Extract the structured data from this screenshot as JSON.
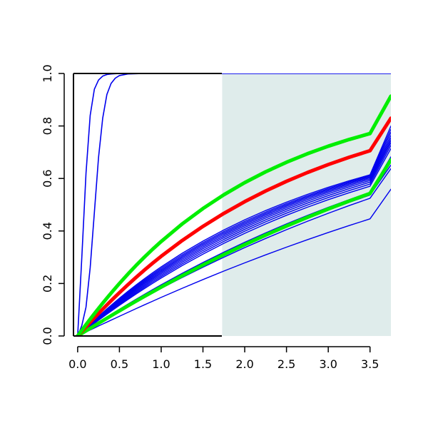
{
  "chart_data": {
    "type": "line",
    "title": "",
    "xlabel": "",
    "ylabel": "",
    "xlim": [
      -0.05,
      3.75
    ],
    "ylim": [
      0.0,
      1.0
    ],
    "x_ticks": [
      "0.0",
      "0.5",
      "1.0",
      "1.5",
      "2.0",
      "2.5",
      "3.0",
      "3.5"
    ],
    "y_ticks": [
      "0.0",
      "0.2",
      "0.4",
      "0.6",
      "0.8",
      "1.0"
    ],
    "grid": false,
    "legend": "none",
    "shaded_region": {
      "x_start": 1.73,
      "x_end": 3.75,
      "color": "#dfeceb"
    },
    "colors": {
      "blue": "#0000ee",
      "red": "#ff0000",
      "green": "#00ee00",
      "axis": "#000000"
    },
    "x": [
      0.0,
      0.05,
      0.1,
      0.15,
      0.2,
      0.25,
      0.3,
      0.35,
      0.4,
      0.45,
      0.5,
      0.6,
      0.7,
      0.8,
      0.9,
      1.0,
      1.25,
      1.5,
      1.75,
      2.0,
      2.25,
      2.5,
      2.75,
      3.0,
      3.25,
      3.5,
      3.75
    ],
    "series": [
      {
        "color": "blue",
        "width": 1.6,
        "y": [
          0.0,
          0.3,
          0.62,
          0.84,
          0.94,
          0.975,
          0.99,
          0.996,
          0.998,
          0.999,
          1.0,
          1.0,
          1.0,
          1.0,
          1.0,
          1.0,
          1.0,
          1.0,
          1.0,
          1.0,
          1.0,
          1.0,
          1.0,
          1.0,
          1.0,
          1.0,
          1.0
        ]
      },
      {
        "color": "blue",
        "width": 1.6,
        "y": [
          0.0,
          0.04,
          0.11,
          0.26,
          0.47,
          0.68,
          0.83,
          0.92,
          0.962,
          0.982,
          0.992,
          0.998,
          0.999,
          1.0,
          1.0,
          1.0,
          1.0,
          1.0,
          1.0,
          1.0,
          1.0,
          1.0,
          1.0,
          1.0,
          1.0,
          1.0,
          1.0
        ]
      },
      {
        "color": "blue",
        "width": 1.4,
        "y": [
          0.0,
          0.0076,
          0.0152,
          0.0228,
          0.0303,
          0.0379,
          0.0454,
          0.0528,
          0.0603,
          0.0677,
          0.0751,
          0.0898,
          0.1043,
          0.1187,
          0.1329,
          0.147,
          0.1815,
          0.2149,
          0.2473,
          0.2786,
          0.3089,
          0.3383,
          0.3667,
          0.3941,
          0.4206,
          0.4462,
          0.5591
        ]
      },
      {
        "color": "blue",
        "width": 1.4,
        "y": [
          0.0,
          0.0096,
          0.0192,
          0.0287,
          0.0381,
          0.0475,
          0.0569,
          0.0662,
          0.0754,
          0.0846,
          0.0937,
          0.1118,
          0.1296,
          0.1471,
          0.1643,
          0.1813,
          0.2225,
          0.262,
          0.3,
          0.3365,
          0.3714,
          0.4048,
          0.4368,
          0.4674,
          0.4967,
          0.5247,
          0.6374
        ]
      },
      {
        "color": "blue",
        "width": 1.4,
        "y": [
          0.0,
          0.0101,
          0.0201,
          0.0301,
          0.0399,
          0.0497,
          0.0595,
          0.0691,
          0.0787,
          0.0883,
          0.0977,
          0.1164,
          0.1348,
          0.1529,
          0.1707,
          0.1882,
          0.2306,
          0.2711,
          0.3099,
          0.3471,
          0.3826,
          0.4164,
          0.4487,
          0.4795,
          0.5089,
          0.5369,
          0.6508
        ]
      },
      {
        "color": "blue",
        "width": 1.4,
        "y": [
          0.0,
          0.0105,
          0.021,
          0.0313,
          0.0416,
          0.0518,
          0.0619,
          0.0719,
          0.0819,
          0.0917,
          0.1015,
          0.1209,
          0.1399,
          0.1586,
          0.1769,
          0.1949,
          0.2385,
          0.2799,
          0.3193,
          0.3569,
          0.3927,
          0.4268,
          0.4592,
          0.49,
          0.5193,
          0.5472,
          0.6824
        ]
      },
      {
        "color": "blue",
        "width": 1.4,
        "y": [
          0.0,
          0.0122,
          0.0243,
          0.0363,
          0.0481,
          0.0599,
          0.0715,
          0.0829,
          0.0943,
          0.1055,
          0.1166,
          0.1385,
          0.1599,
          0.1807,
          0.201,
          0.2207,
          0.2679,
          0.3119,
          0.3529,
          0.3911,
          0.4266,
          0.4597,
          0.4905,
          0.5191,
          0.5457,
          0.5704,
          0.7138
        ]
      },
      {
        "color": "blue",
        "width": 1.4,
        "y": [
          0.0,
          0.0126,
          0.0251,
          0.0375,
          0.0497,
          0.0618,
          0.0737,
          0.0855,
          0.0972,
          0.1087,
          0.1201,
          0.1426,
          0.1644,
          0.1857,
          0.2064,
          0.2265,
          0.2745,
          0.3191,
          0.3605,
          0.399,
          0.4347,
          0.4679,
          0.4987,
          0.5273,
          0.5539,
          0.5786,
          0.7257
        ]
      },
      {
        "color": "blue",
        "width": 1.4,
        "y": [
          0.0,
          0.013,
          0.0259,
          0.0387,
          0.0513,
          0.0637,
          0.076,
          0.0882,
          0.1001,
          0.1119,
          0.1236,
          0.1466,
          0.1689,
          0.1906,
          0.2117,
          0.2321,
          0.2808,
          0.3259,
          0.3677,
          0.4064,
          0.4423,
          0.4755,
          0.5063,
          0.5349,
          0.5614,
          0.586,
          0.7357
        ]
      },
      {
        "color": "blue",
        "width": 1.4,
        "y": [
          0.0,
          0.0134,
          0.0267,
          0.0398,
          0.0528,
          0.0656,
          0.0782,
          0.0907,
          0.103,
          0.1151,
          0.1271,
          0.1506,
          0.1734,
          0.1955,
          0.2169,
          0.2376,
          0.2869,
          0.3325,
          0.3745,
          0.4134,
          0.4493,
          0.4825,
          0.5133,
          0.5418,
          0.5681,
          0.5925,
          0.7447
        ]
      },
      {
        "color": "blue",
        "width": 1.4,
        "y": [
          0.0,
          0.0138,
          0.0275,
          0.041,
          0.0543,
          0.0675,
          0.0805,
          0.0933,
          0.1059,
          0.1183,
          0.1306,
          0.1545,
          0.1777,
          0.2001,
          0.2218,
          0.2428,
          0.2926,
          0.3385,
          0.3808,
          0.4197,
          0.4556,
          0.4888,
          0.5194,
          0.5478,
          0.5739,
          0.5981,
          0.7537
        ]
      },
      {
        "color": "blue",
        "width": 1.4,
        "y": [
          0.0,
          0.0142,
          0.0283,
          0.0421,
          0.0558,
          0.0693,
          0.0826,
          0.0957,
          0.1086,
          0.1213,
          0.1338,
          0.1582,
          0.1818,
          0.2046,
          0.2266,
          0.2479,
          0.2982,
          0.3443,
          0.3867,
          0.4256,
          0.4614,
          0.4944,
          0.5248,
          0.5529,
          0.5789,
          0.6028,
          0.7637
        ]
      },
      {
        "color": "blue",
        "width": 1.4,
        "y": [
          0.0,
          0.0146,
          0.029,
          0.0432,
          0.0572,
          0.071,
          0.0846,
          0.098,
          0.1112,
          0.1242,
          0.137,
          0.1619,
          0.1859,
          0.2091,
          0.2314,
          0.2529,
          0.3036,
          0.3499,
          0.3923,
          0.4311,
          0.4667,
          0.4995,
          0.5297,
          0.5575,
          0.5832,
          0.6068,
          0.7756
        ]
      },
      {
        "color": "blue",
        "width": 1.4,
        "y": [
          0.0,
          0.015,
          0.0298,
          0.0444,
          0.0587,
          0.0729,
          0.0868,
          0.1005,
          0.114,
          0.1273,
          0.1403,
          0.1657,
          0.1901,
          0.2136,
          0.2362,
          0.2579,
          0.3089,
          0.3554,
          0.3978,
          0.4365,
          0.4719,
          0.5044,
          0.5343,
          0.5618,
          0.5871,
          0.6104,
          0.7871
        ]
      },
      {
        "color": "blue",
        "width": 1.4,
        "y": [
          0.0,
          0.0154,
          0.0306,
          0.0456,
          0.0603,
          0.0748,
          0.0891,
          0.1031,
          0.1169,
          0.1305,
          0.1438,
          0.1696,
          0.1945,
          0.2184,
          0.2413,
          0.2633,
          0.3148,
          0.3615,
          0.404,
          0.4426,
          0.4778,
          0.5099,
          0.5394,
          0.5664,
          0.5912,
          0.614,
          0.7995
        ]
      },
      {
        "color": "green",
        "width": 5,
        "y": [
          0.0,
          0.0098,
          0.0196,
          0.0293,
          0.039,
          0.0486,
          0.0582,
          0.0677,
          0.0772,
          0.0866,
          0.096,
          0.1145,
          0.1328,
          0.1509,
          0.1687,
          0.1863,
          0.2294,
          0.2706,
          0.3101,
          0.348,
          0.3843,
          0.419,
          0.4521,
          0.4838,
          0.5141,
          0.543,
          0.6708
        ]
      },
      {
        "color": "red",
        "width": 5,
        "y": [
          0.0,
          0.0177,
          0.0351,
          0.0522,
          0.0691,
          0.0857,
          0.1021,
          0.1182,
          0.134,
          0.1496,
          0.1649,
          0.1948,
          0.2236,
          0.2513,
          0.2779,
          0.3035,
          0.3633,
          0.4176,
          0.467,
          0.5118,
          0.5524,
          0.5892,
          0.6226,
          0.653,
          0.6806,
          0.7057,
          0.8296
        ]
      },
      {
        "color": "green",
        "width": 5,
        "y": [
          0.0,
          0.0218,
          0.0432,
          0.0642,
          0.0848,
          0.105,
          0.1248,
          0.1442,
          0.1632,
          0.1818,
          0.2,
          0.2353,
          0.2689,
          0.3008,
          0.3312,
          0.36,
          0.4265,
          0.4855,
          0.5378,
          0.5842,
          0.6253,
          0.6618,
          0.6942,
          0.723,
          0.7485,
          0.7712,
          0.9137
        ]
      }
    ]
  }
}
